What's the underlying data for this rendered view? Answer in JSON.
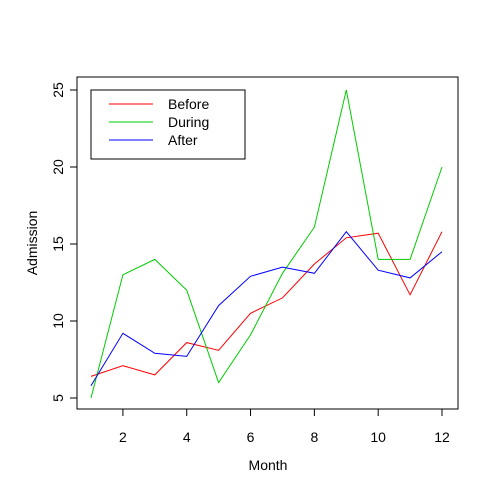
{
  "chart_data": {
    "type": "line",
    "title": "",
    "xlabel": "Month",
    "ylabel": "Admission",
    "x": [
      1,
      2,
      3,
      4,
      5,
      6,
      7,
      8,
      9,
      10,
      11,
      12
    ],
    "xlim": [
      1,
      12
    ],
    "ylim": [
      5,
      25
    ],
    "xticks": [
      "2",
      "4",
      "6",
      "8",
      "10",
      "12"
    ],
    "yticks": [
      "5",
      "10",
      "15",
      "20",
      "25"
    ],
    "grid": false,
    "legend_position": "top-left",
    "series": [
      {
        "name": "Before",
        "color": "#ff0000",
        "values": [
          6.4,
          7.1,
          6.5,
          8.6,
          8.1,
          10.5,
          11.5,
          13.7,
          15.4,
          15.7,
          11.7,
          15.8
        ]
      },
      {
        "name": "During",
        "color": "#00cc00",
        "values": [
          5.0,
          13.0,
          14.0,
          12.0,
          6.0,
          9.1,
          13.1,
          16.1,
          25.0,
          14.0,
          14.0,
          20.0
        ]
      },
      {
        "name": "After",
        "color": "#0000ff",
        "values": [
          5.8,
          9.2,
          7.9,
          7.7,
          11.0,
          12.9,
          13.5,
          13.1,
          15.8,
          13.3,
          12.8,
          14.5
        ]
      }
    ]
  }
}
